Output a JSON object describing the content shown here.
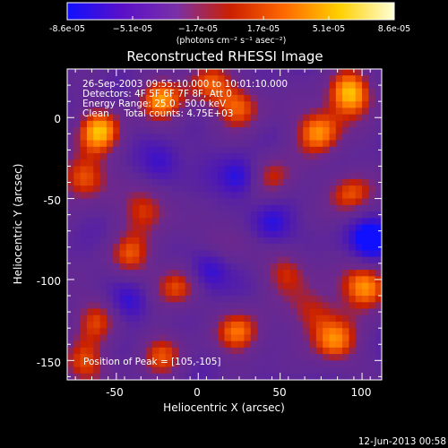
{
  "colorbar": {
    "tick_labels": [
      "-8.6e-05",
      "−5.1e-05",
      "−1.7e-05",
      "1.7e-05",
      "5.1e-05",
      "8.6e-05"
    ],
    "unit_label": "(photons cm⁻² s⁻¹ asec⁻²)",
    "range": [
      -8.6e-05,
      8.6e-05
    ],
    "colors": [
      "#1010ff",
      "#5a10c8",
      "#7a30a8",
      "#cc2000",
      "#ff6a00",
      "#ffd000",
      "#ffffd8"
    ]
  },
  "title": "Reconstructed RHESSI Image",
  "annotations": [
    "26-Sep-2003 09:55:10.000 to 10:01:10.000",
    "Detectors: 4F 5F 6F 7F 8F, Att 0",
    "Energy Range: 25.0 - 50.0 keV",
    "Clean     Total counts: 4.75E+03"
  ],
  "peak_label": "Position of Peak = [105,-105]",
  "footer_timestamp": "12-Jun-2013 00:58",
  "chart_data": {
    "type": "heatmap",
    "title": "Reconstructed RHESSI Image",
    "xlabel": "Heliocentric X (arcsec)",
    "ylabel": "Heliocentric Y (arcsec)",
    "xlim": [
      -80,
      112
    ],
    "ylim": [
      -162,
      30
    ],
    "x_ticks": [
      "-50",
      "0",
      "50",
      "100"
    ],
    "x_tick_values": [
      -50,
      0,
      50,
      100
    ],
    "y_ticks": [
      "0",
      "-50",
      "-100",
      "-150"
    ],
    "y_tick_values": [
      0,
      -50,
      -100,
      -150
    ],
    "value_range": [
      -8.6e-05,
      8.6e-05
    ],
    "peak": {
      "x": 105,
      "y": -105
    }
  }
}
